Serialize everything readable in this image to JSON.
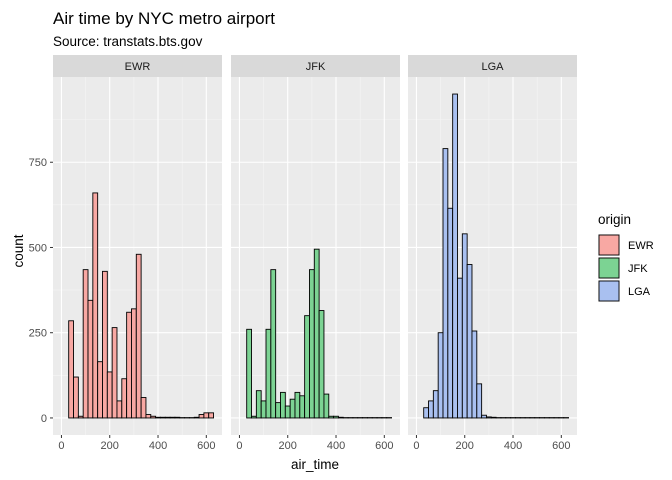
{
  "chart_data": {
    "type": "histogram",
    "title": "Air time by NYC metro airport",
    "subtitle": "Source: transtats.bts.gov",
    "xlabel": "air_time",
    "ylabel": "count",
    "x_ticks": [
      0,
      200,
      400,
      600
    ],
    "x_tick_labels": [
      "0",
      "200",
      "400",
      "600"
    ],
    "xlim": [
      -35,
      665
    ],
    "y_ticks": [
      0,
      250,
      500,
      750
    ],
    "y_tick_labels": [
      "0",
      "250",
      "500",
      "750"
    ],
    "ylim": [
      -50,
      1000
    ],
    "bin_width": 20,
    "legend": {
      "title": "origin",
      "position": "right",
      "entries": [
        "EWR",
        "JFK",
        "LGA"
      ]
    },
    "grid": true,
    "panels": [
      {
        "label": "EWR",
        "fill": "#F8A8A3",
        "bin_starts": [
          30,
          50,
          70,
          90,
          110,
          130,
          150,
          170,
          190,
          210,
          230,
          250,
          270,
          290,
          310,
          330,
          350,
          370,
          390,
          410,
          430,
          450,
          470,
          490,
          510,
          530,
          550,
          570,
          590,
          610
        ],
        "counts": [
          285,
          120,
          5,
          435,
          345,
          660,
          165,
          430,
          135,
          265,
          50,
          115,
          310,
          320,
          480,
          60,
          10,
          5,
          2,
          2,
          2,
          2,
          2,
          1,
          1,
          1,
          2,
          10,
          15,
          15
        ]
      },
      {
        "label": "JFK",
        "fill": "#7CD393",
        "bin_starts": [
          30,
          50,
          70,
          90,
          110,
          130,
          150,
          170,
          190,
          210,
          230,
          250,
          270,
          290,
          310,
          330,
          350,
          370,
          390,
          410,
          430,
          450,
          470,
          490,
          510,
          530,
          550,
          570,
          590,
          610
        ],
        "counts": [
          260,
          5,
          80,
          50,
          260,
          435,
          45,
          75,
          35,
          55,
          75,
          65,
          300,
          435,
          495,
          315,
          70,
          5,
          5,
          2,
          1,
          1,
          1,
          1,
          1,
          1,
          1,
          1,
          1,
          1
        ]
      },
      {
        "label": "LGA",
        "fill": "#A9C0F0",
        "bin_starts": [
          30,
          50,
          70,
          90,
          110,
          130,
          150,
          170,
          190,
          210,
          230,
          250,
          270,
          290,
          310,
          330,
          350,
          370,
          390,
          410,
          430,
          450,
          470,
          490,
          510,
          530,
          550,
          570,
          590,
          610
        ],
        "counts": [
          30,
          50,
          80,
          250,
          790,
          615,
          950,
          410,
          540,
          450,
          255,
          100,
          8,
          3,
          2,
          1,
          1,
          1,
          1,
          1,
          1,
          1,
          1,
          1,
          1,
          1,
          1,
          1,
          1,
          1
        ]
      }
    ]
  },
  "colors": {
    "panel_background": "#EBEBEB",
    "grid_major": "#FFFFFF",
    "strip_background": "#D9D9D9",
    "bar_outline": "#000000",
    "text": "#000000",
    "tick_text": "#4D4D4D"
  }
}
